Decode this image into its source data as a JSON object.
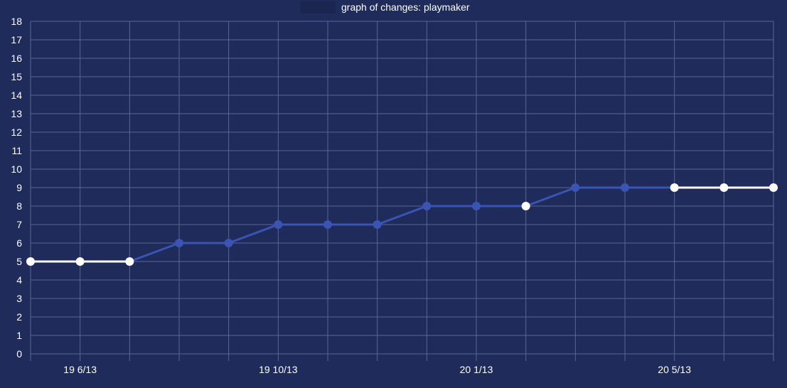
{
  "chart_data": {
    "type": "line",
    "title": "",
    "xlabel": "",
    "ylabel": "",
    "ylim": [
      0,
      18
    ],
    "y_ticks": [
      0,
      1,
      2,
      3,
      4,
      5,
      6,
      7,
      8,
      9,
      10,
      11,
      12,
      13,
      14,
      15,
      16,
      17,
      18
    ],
    "grid": true,
    "legend_position": "top-center",
    "x_tick_labels": [
      {
        "index": 1,
        "label": "19 6/13"
      },
      {
        "index": 5,
        "label": "19 10/13"
      },
      {
        "index": 9,
        "label": "20 1/13"
      },
      {
        "index": 13,
        "label": "20 5/13"
      }
    ],
    "series": [
      {
        "name": "graph of changes: playmaker",
        "color": "#3a54b4",
        "highlight_color": "#ffffff",
        "legend_swatch_color": "#1a2550",
        "values": [
          5,
          5,
          5,
          6,
          6,
          7,
          7,
          7,
          8,
          8,
          8,
          9,
          9,
          9,
          9,
          9
        ],
        "highlighted_points": [
          true,
          true,
          true,
          false,
          false,
          false,
          false,
          false,
          false,
          false,
          true,
          false,
          false,
          true,
          true,
          true
        ]
      }
    ]
  }
}
